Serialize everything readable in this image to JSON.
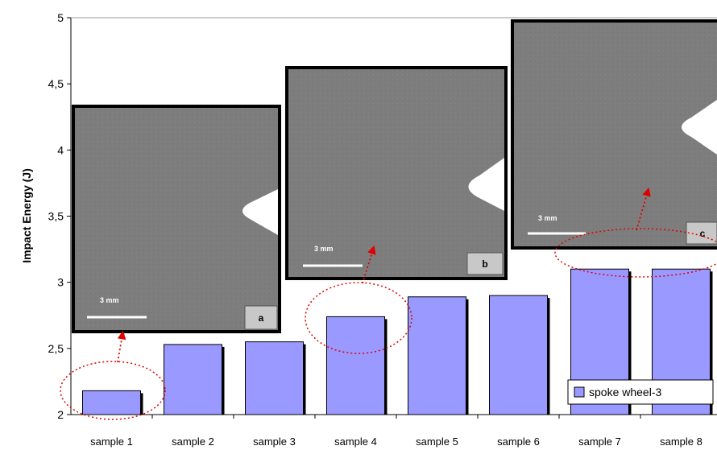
{
  "chart_data": {
    "type": "bar",
    "categories": [
      "sample 1",
      "sample 2",
      "sample 3",
      "sample 4",
      "sample 5",
      "sample 6",
      "sample 7",
      "sample 8"
    ],
    "series": [
      {
        "name": "spoke wheel-3",
        "values": [
          2.18,
          2.53,
          2.55,
          2.74,
          2.89,
          2.9,
          3.1,
          3.1
        ],
        "color": "#9999ff"
      }
    ],
    "ylabel": "Impact Energy (J)",
    "ylim": [
      2,
      5
    ],
    "yticks": [
      2,
      2.5,
      3,
      3.5,
      4,
      4.5,
      5
    ],
    "ytick_labels": [
      "2",
      "2,5",
      "3",
      "3,5",
      "4",
      "4,5",
      "5"
    ],
    "grid": false,
    "legend": "bottom-right"
  },
  "insets": [
    {
      "label": "a",
      "scale_text": "3 mm"
    },
    {
      "label": "b",
      "scale_text": "3 mm"
    },
    {
      "label": "c",
      "scale_text": "3 mm"
    }
  ]
}
